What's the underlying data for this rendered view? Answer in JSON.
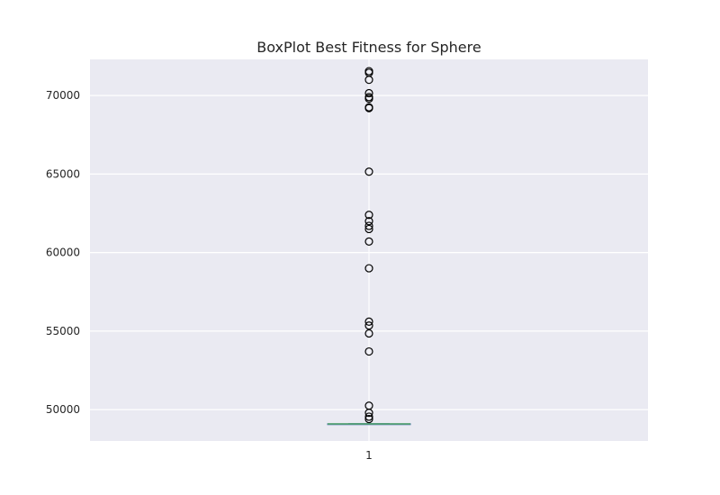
{
  "chart_data": {
    "type": "box",
    "title": "BoxPlot Best Fitness for Sphere",
    "xlabel": "",
    "ylabel": "",
    "categories": [
      "1"
    ],
    "ylim": [
      48000,
      72300
    ],
    "yticks": [
      50000,
      55000,
      60000,
      65000,
      70000
    ],
    "grid": true,
    "box": {
      "q1": 49080,
      "median": 49090,
      "q3": 49100,
      "whisker_low": 49075,
      "whisker_high": 49110
    },
    "outliers": [
      71550,
      71450,
      71000,
      70150,
      69900,
      69800,
      69250,
      69200,
      65150,
      62400,
      62000,
      61700,
      61500,
      60700,
      59000,
      55600,
      55350,
      54850,
      53700,
      50250,
      49800,
      49550,
      49400
    ],
    "colors": {
      "background": "#eaeaf2",
      "grid": "#ffffff",
      "median": "#55a868",
      "box": "#4c72b0",
      "outlier_edge": "#000000"
    }
  }
}
